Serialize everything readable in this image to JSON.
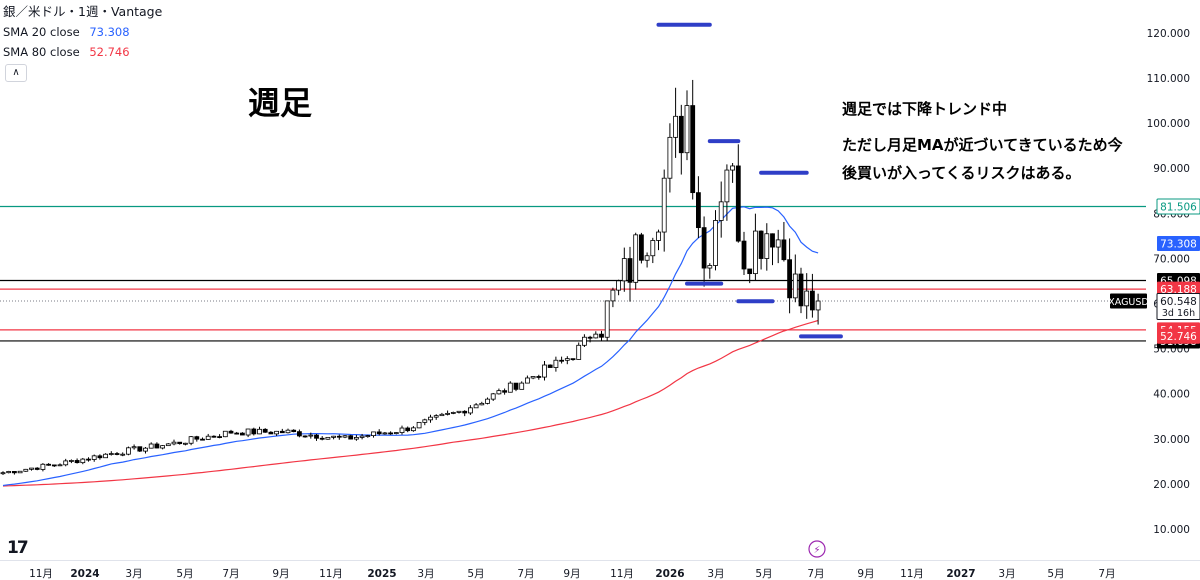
{
  "header": {
    "title": "銀／米ドル・1週・Vantage",
    "indicators": [
      {
        "label": "SMA 20 close",
        "value": "73.308",
        "color": "#2962ff"
      },
      {
        "label": "SMA 80 close",
        "value": "52.746",
        "color": "#f23645"
      }
    ],
    "collapse_icon": "chevron-up-icon",
    "logo_icon": "tradingview-logo-icon",
    "logo_text": "17"
  },
  "annotations": {
    "big_title": "週足",
    "note_lines": [
      "週足では下降トレンド中",
      "ただし月足MAが近づいてきているため今",
      "後買いが入ってくるリスクはある。"
    ]
  },
  "chart_data": {
    "type": "candlestick",
    "symbol": "XAGUSD",
    "timeframe": "1週",
    "x_tick_labels": [
      "11月",
      "2024",
      "3月",
      "5月",
      "7月",
      "9月",
      "11月",
      "2025",
      "3月",
      "5月",
      "7月",
      "9月",
      "11月",
      "2026",
      "3月",
      "5月",
      "7月",
      "9月",
      "11月",
      "2027",
      "3月",
      "5月",
      "7月"
    ],
    "y_tick_labels": [
      "10.000",
      "20.000",
      "30.000",
      "40.000",
      "50.000",
      "60.000",
      "70.000",
      "80.000",
      "90.000",
      "100.000",
      "110.000",
      "120.000"
    ],
    "ylim": [
      5,
      124
    ],
    "grid": false,
    "last_price": {
      "label": "XAGUSD",
      "value": "60.548",
      "countdown": "3d 16h",
      "price": 60.548
    },
    "horizontal_lines": [
      {
        "price": 81.506,
        "label": "81.506",
        "color": "#089981"
      },
      {
        "price": 65.098,
        "label": "65.098",
        "color": "#000000"
      },
      {
        "price": 63.188,
        "label": "63.188",
        "color": "#f23645"
      },
      {
        "price": 54.155,
        "label": "54.155",
        "color": "#f23645"
      },
      {
        "price": 51.698,
        "label": "51.698",
        "color": "#000000"
      }
    ],
    "sma_labels": [
      {
        "value": "73.308",
        "price": 73.308,
        "color": "#2962ff"
      },
      {
        "value": "52.746",
        "price": 52.746,
        "color": "#f23645"
      }
    ],
    "marker_segments": [
      {
        "start_week": 115,
        "end_week": 124,
        "price": 121.8
      },
      {
        "start_week": 124,
        "end_week": 129,
        "price": 96.0
      },
      {
        "start_week": 133,
        "end_week": 141,
        "price": 89.0
      },
      {
        "start_week": 120,
        "end_week": 126,
        "price": 64.4
      },
      {
        "start_week": 129,
        "end_week": 135,
        "price": 60.5
      },
      {
        "start_week": 140,
        "end_week": 147,
        "price": 52.7
      }
    ],
    "anchor_weeks": [
      0,
      10,
      20,
      30,
      40,
      50,
      60,
      70,
      80,
      90,
      100,
      105,
      110,
      115,
      120,
      123,
      127,
      130,
      135,
      140,
      143
    ],
    "anchor_close": [
      22.5,
      24.5,
      27.0,
      29.0,
      31.5,
      31.5,
      30.0,
      32.0,
      36.0,
      42.0,
      48.5,
      56.0,
      68.0,
      83.0,
      104.0,
      68.0,
      93.0,
      72.0,
      78.0,
      60.0,
      60.5
    ],
    "week_count": 144,
    "sma20_start": 19.5,
    "sma80_start": 19.5
  }
}
